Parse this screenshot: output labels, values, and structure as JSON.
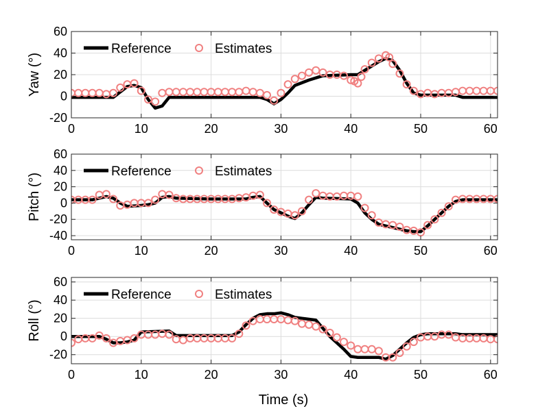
{
  "xlabel": "Time (s)",
  "chart_data": [
    {
      "type": "line",
      "ylabel": "Yaw (°)",
      "xlim": [
        0,
        61
      ],
      "ylim": [
        -20,
        60
      ],
      "xticks": [
        0,
        10,
        20,
        30,
        40,
        50,
        60
      ],
      "yticks": [
        -20,
        0,
        20,
        40,
        60
      ],
      "grid": true,
      "legend": "top-left",
      "series": [
        {
          "name": "Reference",
          "style": "line",
          "color": "#000000",
          "x": [
            0,
            6,
            7,
            8,
            9,
            10,
            11,
            12,
            13,
            14,
            20,
            25,
            27,
            28,
            29,
            30,
            31,
            32,
            34,
            36,
            40,
            41,
            42,
            44,
            45,
            46,
            47,
            48,
            49,
            50,
            52,
            55,
            56,
            60,
            61
          ],
          "y": [
            -1,
            -1,
            4,
            9,
            10,
            8,
            -3,
            -11,
            -9,
            -1,
            -1,
            -1,
            -1,
            -3,
            -7,
            -3,
            3,
            10,
            15,
            19,
            20,
            20,
            24,
            32,
            35,
            33,
            24,
            12,
            3,
            1,
            1,
            1,
            -1,
            -1,
            -1
          ]
        },
        {
          "name": "Estimates",
          "style": "markers",
          "color": "#f08080",
          "x": [
            0,
            1,
            2,
            3,
            4,
            5,
            6,
            7,
            8,
            9,
            10,
            11,
            12,
            13,
            14,
            15,
            16,
            17,
            18,
            19,
            20,
            21,
            22,
            23,
            24,
            25,
            26,
            27,
            28,
            29,
            30,
            31,
            32,
            33,
            34,
            35,
            36,
            37,
            38,
            39,
            40,
            40.5,
            41,
            41.5,
            42,
            43,
            44,
            45,
            45.5,
            46,
            47,
            48,
            49,
            50,
            51,
            52,
            53,
            54,
            55,
            56,
            57,
            58,
            59,
            60,
            61
          ],
          "y": [
            3,
            3,
            3,
            3,
            3,
            2,
            3,
            8,
            11,
            12,
            5,
            -3,
            -5,
            3,
            4,
            4,
            4,
            4,
            4,
            4,
            4,
            4,
            4,
            4,
            4,
            5,
            4,
            3,
            1,
            -4,
            3,
            11,
            16,
            19,
            22,
            24,
            22,
            20,
            20,
            19,
            15,
            14,
            12,
            18,
            25,
            31,
            35,
            38,
            36,
            30,
            21,
            11,
            5,
            2,
            3,
            2,
            3,
            3,
            4,
            5,
            5,
            5,
            5,
            5,
            5
          ]
        }
      ]
    },
    {
      "type": "line",
      "ylabel": "Pitch (°)",
      "xlim": [
        0,
        61
      ],
      "ylim": [
        -45,
        60
      ],
      "xticks": [
        0,
        10,
        20,
        30,
        40,
        50,
        60
      ],
      "yticks": [
        -40,
        -20,
        0,
        20,
        40,
        60
      ],
      "grid": true,
      "legend": "top-left",
      "series": [
        {
          "name": "Reference",
          "style": "line",
          "color": "#000000",
          "x": [
            0,
            3,
            4,
            5,
            6,
            7,
            8,
            10,
            11,
            12,
            13,
            14,
            15,
            20,
            25,
            26,
            27,
            28,
            29,
            30,
            31,
            32,
            33,
            34,
            35,
            36,
            40,
            41,
            42,
            43,
            44,
            45,
            46,
            47,
            48,
            49,
            50,
            51,
            52,
            53,
            54,
            55,
            56,
            60,
            61
          ],
          "y": [
            4,
            4,
            6,
            8,
            6,
            0,
            -4,
            -3,
            -2,
            0,
            7,
            8,
            6,
            5,
            5,
            7,
            8,
            0,
            -8,
            -12,
            -16,
            -19,
            -12,
            -2,
            7,
            6,
            5,
            0,
            -12,
            -20,
            -26,
            -28,
            -30,
            -32,
            -34,
            -35,
            -35,
            -28,
            -20,
            -12,
            -4,
            2,
            4,
            4,
            4
          ]
        },
        {
          "name": "Estimates",
          "style": "markers",
          "color": "#f08080",
          "x": [
            0,
            1,
            2,
            3,
            4,
            5,
            6,
            7,
            8,
            9,
            10,
            11,
            12,
            13,
            14,
            15,
            16,
            17,
            18,
            19,
            20,
            21,
            22,
            23,
            24,
            25,
            26,
            27,
            28,
            29,
            30,
            31,
            32,
            33,
            34,
            35,
            36,
            37,
            38,
            39,
            40,
            41,
            42,
            43,
            44,
            45,
            46,
            47,
            48,
            49,
            50,
            51,
            52,
            53,
            54,
            55,
            56,
            57,
            58,
            59,
            60,
            61
          ],
          "y": [
            4,
            4,
            4,
            4,
            10,
            11,
            5,
            -3,
            -2,
            0,
            0,
            0,
            4,
            11,
            10,
            6,
            5,
            5,
            5,
            5,
            5,
            5,
            5,
            5,
            6,
            7,
            9,
            10,
            0,
            -8,
            -11,
            -13,
            -15,
            -10,
            4,
            12,
            9,
            8,
            8,
            9,
            9,
            8,
            -6,
            -15,
            -24,
            -26,
            -27,
            -29,
            -33,
            -34,
            -36,
            -27,
            -20,
            -12,
            -4,
            4,
            5,
            5,
            5,
            5,
            5,
            5
          ]
        }
      ]
    },
    {
      "type": "line",
      "ylabel": "Roll (°)",
      "xlim": [
        0,
        61
      ],
      "ylim": [
        -30,
        65
      ],
      "xticks": [
        0,
        10,
        20,
        30,
        40,
        50,
        60
      ],
      "yticks": [
        -20,
        0,
        20,
        40,
        60
      ],
      "grid": true,
      "legend": "top-left",
      "series": [
        {
          "name": "Reference",
          "style": "line",
          "color": "#000000",
          "x": [
            0,
            4,
            5,
            6,
            7,
            8,
            9,
            10,
            14,
            15,
            20,
            23,
            24,
            25,
            26,
            27,
            28,
            29,
            30,
            31,
            32,
            33,
            34,
            35,
            36,
            37,
            38,
            39,
            40,
            41,
            42,
            43,
            44,
            45,
            46,
            47,
            48,
            49,
            50,
            51,
            55,
            56,
            60,
            61
          ],
          "y": [
            0,
            0,
            -3,
            -7,
            -7,
            -6,
            -4,
            5,
            6,
            1,
            1,
            1,
            5,
            13,
            20,
            24,
            25,
            25,
            26,
            24,
            21,
            20,
            19,
            18,
            9,
            0,
            -7,
            -14,
            -22,
            -23,
            -23,
            -23,
            -23,
            -25,
            -21,
            -14,
            -7,
            -1,
            2,
            3,
            3,
            2,
            2,
            2
          ]
        },
        {
          "name": "Estimates",
          "style": "markers",
          "color": "#f08080",
          "x": [
            0,
            1,
            2,
            3,
            4,
            5,
            6,
            7,
            8,
            9,
            10,
            11,
            12,
            13,
            14,
            15,
            16,
            17,
            18,
            19,
            20,
            21,
            22,
            23,
            24,
            25,
            26,
            27,
            28,
            29,
            30,
            31,
            32,
            33,
            34,
            35,
            36,
            37,
            38,
            39,
            40,
            41,
            42,
            43,
            44,
            45,
            46,
            47,
            48,
            49,
            50,
            51,
            52,
            53,
            54,
            55,
            56,
            57,
            58,
            59,
            60,
            61
          ],
          "y": [
            -7,
            -3,
            -2,
            -2,
            1,
            -2,
            -7,
            -5,
            -4,
            -2,
            2,
            2,
            2,
            3,
            2,
            -3,
            -4,
            -2,
            -2,
            -2,
            -2,
            -2,
            -2,
            -2,
            3,
            12,
            17,
            19,
            19,
            19,
            19,
            18,
            17,
            14,
            13,
            11,
            8,
            4,
            -1,
            -6,
            -10,
            -14,
            -14,
            -14,
            -16,
            -23,
            -23,
            -18,
            -11,
            -6,
            -1,
            0,
            0,
            2,
            2,
            -1,
            -2,
            -2,
            -2,
            -2,
            -3,
            -3
          ]
        }
      ]
    }
  ]
}
